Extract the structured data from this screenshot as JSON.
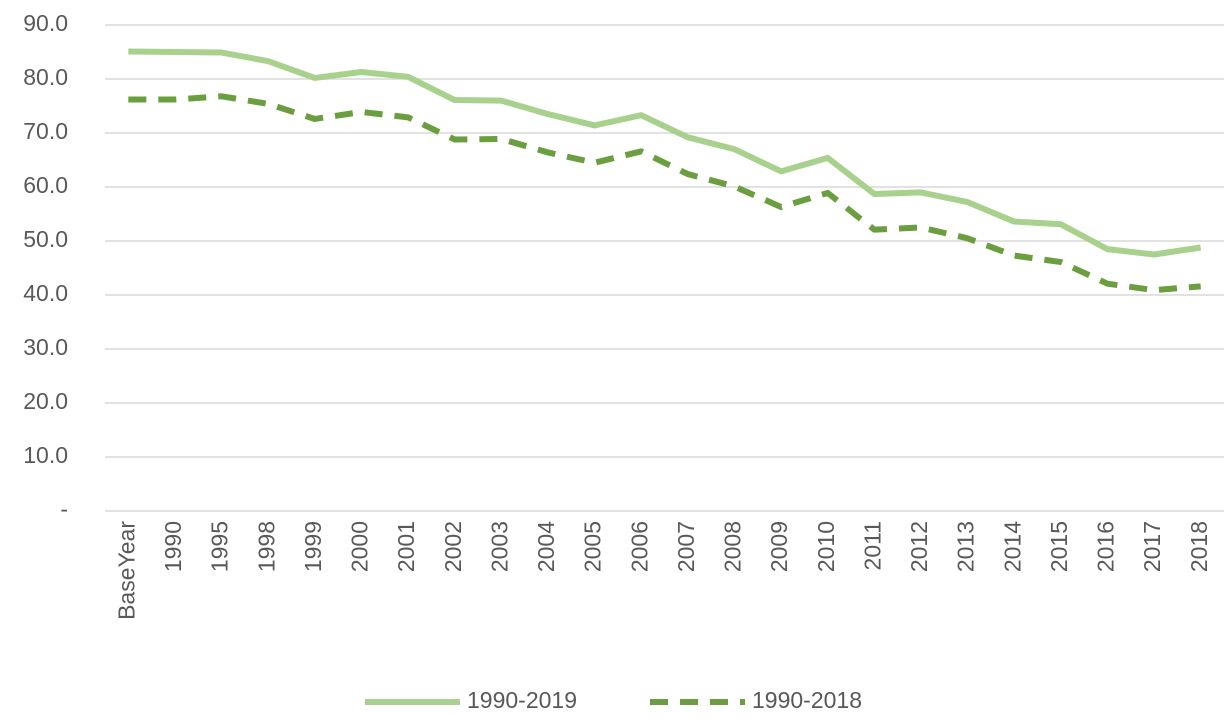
{
  "chart_data": {
    "type": "line",
    "categories": [
      "BaseYear",
      "1990",
      "1995",
      "1998",
      "1999",
      "2000",
      "2001",
      "2002",
      "2003",
      "2004",
      "2005",
      "2006",
      "2007",
      "2008",
      "2009",
      "2010",
      "2011",
      "2012",
      "2013",
      "2014",
      "2015",
      "2016",
      "2017",
      "2018"
    ],
    "series": [
      {
        "name": "1990-2019",
        "color": "#a9d18e",
        "dashed": false,
        "values": [
          85.1,
          85.0,
          84.9,
          83.3,
          80.2,
          81.3,
          80.4,
          76.1,
          76.0,
          73.5,
          71.4,
          73.3,
          69.2,
          67.0,
          62.9,
          65.4,
          58.7,
          59.0,
          57.2,
          53.6,
          53.1,
          48.5,
          47.5,
          48.8
        ]
      },
      {
        "name": "1990-2018",
        "color": "#6a9e3f",
        "dashed": true,
        "values": [
          76.2,
          76.2,
          76.8,
          75.4,
          72.6,
          73.9,
          72.9,
          68.8,
          68.9,
          66.4,
          64.5,
          66.6,
          62.4,
          60.1,
          56.3,
          58.9,
          52.1,
          52.5,
          50.5,
          47.3,
          46.1,
          42.1,
          40.9,
          41.6
        ]
      }
    ],
    "ylim": [
      0,
      90
    ],
    "yticks": [
      {
        "value": 0,
        "label": "-"
      },
      {
        "value": 10,
        "label": "10.0"
      },
      {
        "value": 20,
        "label": "20.0"
      },
      {
        "value": 30,
        "label": "30.0"
      },
      {
        "value": 40,
        "label": "40.0"
      },
      {
        "value": 50,
        "label": "50.0"
      },
      {
        "value": 60,
        "label": "60.0"
      },
      {
        "value": 70,
        "label": "70.0"
      },
      {
        "value": 80,
        "label": "80.0"
      },
      {
        "value": 90,
        "label": "90.0"
      }
    ],
    "grid": true,
    "legend": "bottom"
  }
}
